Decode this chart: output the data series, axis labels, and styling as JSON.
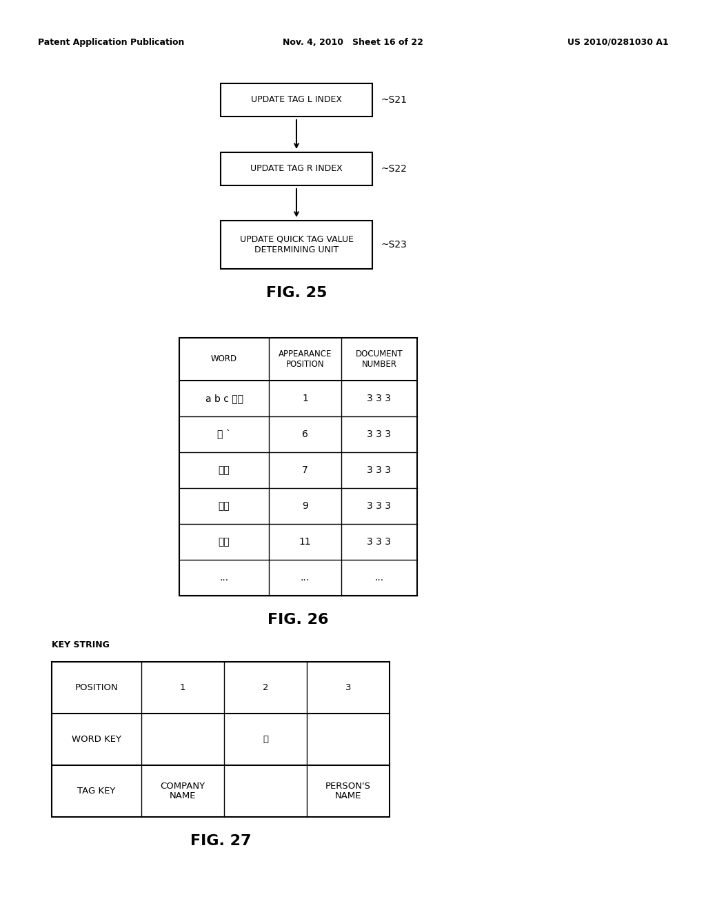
{
  "bg_color": "#ffffff",
  "header_text": {
    "left": "Patent Application Publication",
    "center": "Nov. 4, 2010   Sheet 16 of 22",
    "right": "US 2010/0281030 A1"
  },
  "fig25": {
    "title": "FIG. 25",
    "boxes": [
      {
        "label": "UPDATE TAG L INDEX",
        "tag": "~S21"
      },
      {
        "label": "UPDATE TAG R INDEX",
        "tag": "~S22"
      },
      {
        "label": "UPDATE QUICK TAG VALUE\nDETERMINING UNIT",
        "tag": "~S23"
      }
    ]
  },
  "fig26": {
    "title": "FIG. 26",
    "col_headers": [
      "WORD",
      "APPEARANCE\nPOSITION",
      "DOCUMENT\nNUMBER"
    ],
    "rows": [
      [
        "a b c 産業",
        "1",
        "3 3 3"
      ],
      [
        "の `",
        "6",
        "3 3 3"
      ],
      [
        "山田",
        "7",
        "3 3 3"
      ],
      [
        "太郎",
        "9",
        "3 3 3"
      ],
      [
        "社長",
        "11",
        "3 3 3"
      ],
      [
        "...",
        "...",
        "..."
      ]
    ]
  },
  "fig27": {
    "title": "FIG. 27",
    "label": "KEY STRING",
    "rows": [
      [
        "POSITION",
        "1",
        "2",
        "3"
      ],
      [
        "WORD KEY",
        "",
        "の",
        ""
      ],
      [
        "TAG KEY",
        "COMPANY\nNAME",
        "",
        "PERSON'S\nNAME"
      ]
    ]
  }
}
